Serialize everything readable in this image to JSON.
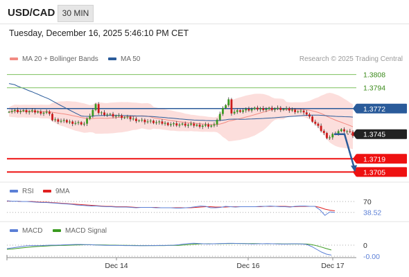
{
  "header": {
    "pair": "USD/CAD",
    "timeframe": "30 MIN",
    "datetime": "Tuesday, December 16, 2025 5:46:10 PM CET"
  },
  "legend": {
    "items": [
      {
        "label": "MA 20 + Bollinger Bands",
        "color": "#f28b82"
      },
      {
        "label": "MA 50",
        "color": "#2a5b9a"
      }
    ],
    "research": "Research © 2025 Trading Central"
  },
  "rsi_legend": {
    "rsi": "RSI",
    "rsi_color": "#5b7fd6",
    "ma": "9MA",
    "ma_color": "#e02020"
  },
  "macd_legend": {
    "macd": "MACD",
    "macd_color": "#5b7fd6",
    "signal": "MACD Signal",
    "signal_color": "#3a9a20"
  },
  "chart_data": [
    {
      "type": "candlestick",
      "ylim": [
        1.3698,
        1.3815
      ],
      "x_labels": [
        "Dec 14",
        "Dec 16",
        "Dec 17"
      ],
      "levels": [
        {
          "label": "1.3808",
          "value": 1.3808,
          "style": "green"
        },
        {
          "label": "1.3794",
          "value": 1.3794,
          "style": "green"
        },
        {
          "label": "1.3772",
          "value": 1.3772,
          "style": "pivot"
        },
        {
          "label": "1.3745",
          "value": 1.3745,
          "style": "current"
        },
        {
          "label": "1.3719",
          "value": 1.3719,
          "style": "red"
        },
        {
          "label": "1.3705",
          "value": 1.3705,
          "style": "red"
        }
      ],
      "projection": {
        "from": 1.3745,
        "to": 1.3705
      }
    },
    {
      "type": "line",
      "name": "RSI",
      "levels": [
        {
          "label": "70",
          "value": 70
        },
        {
          "label": "38.52",
          "value": 38.52
        }
      ],
      "ylim": [
        20,
        80
      ],
      "rsi": [
        72,
        71,
        71,
        70,
        70,
        69,
        68,
        67,
        67,
        66,
        65,
        64,
        63,
        62,
        60,
        59,
        58,
        57,
        57,
        56,
        55,
        55,
        54,
        54,
        54,
        53,
        52,
        53,
        53,
        53,
        52,
        52,
        52,
        52,
        51,
        51,
        52,
        53,
        55,
        57,
        56,
        52,
        52,
        53,
        56,
        55,
        54,
        55,
        55,
        55,
        55,
        56,
        56,
        57,
        56,
        55,
        55,
        54,
        56,
        57,
        57,
        56,
        56,
        46,
        30,
        40,
        38.52
      ],
      "ma": [
        71,
        71,
        71,
        70,
        70,
        70,
        69,
        68,
        68,
        67,
        66,
        65,
        64,
        63,
        62,
        61,
        60,
        59,
        58,
        57,
        56,
        56,
        55,
        55,
        55,
        54,
        53,
        53,
        53,
        53,
        53,
        52,
        52,
        52,
        52,
        52,
        52,
        52,
        53,
        54,
        55,
        55,
        54,
        54,
        54,
        55,
        55,
        55,
        55,
        55,
        55,
        55,
        56,
        56,
        56,
        56,
        56,
        55,
        55,
        56,
        56,
        56,
        56,
        53,
        48,
        45,
        43
      ]
    },
    {
      "type": "line",
      "name": "MACD",
      "levels": [
        {
          "label": "0",
          "value": 0
        },
        {
          "label": "-0.00",
          "value": -0.0008
        }
      ],
      "ylim": [
        -0.0009,
        0.0006
      ],
      "macd": [
        -0.00025,
        -0.0002,
        -0.00015,
        -0.0001,
        -5e-05,
        -3e-05,
        -4e-05,
        -3e-05,
        -1e-05,
        0.0,
        0.0,
        1e-05,
        3e-05,
        4e-05,
        5e-05,
        5e-05,
        4e-05,
        3e-05,
        1e-05,
        0.0,
        -1e-05,
        -2e-05,
        -2e-05,
        -2e-05,
        -3e-05,
        -3e-05,
        -4e-05,
        -4e-05,
        -4e-05,
        -3e-05,
        -3e-05,
        -2e-05,
        -2e-05,
        -1e-05,
        0.0,
        3e-05,
        8e-05,
        0.00012,
        0.00014,
        0.00012,
        0.0001,
        9e-05,
        0.0001,
        0.00011,
        0.00012,
        0.00013,
        0.00013,
        0.00012,
        0.00011,
        0.0001,
        9e-05,
        0.0001,
        0.0001,
        0.00011,
        0.0001,
        9e-05,
        8e-05,
        8e-05,
        0.0001,
        0.0001,
        8e-05,
        5e-05,
        -0.0001,
        -0.0003,
        -0.0005,
        -0.00065,
        -0.00072
      ],
      "signal": [
        -0.0003,
        -0.00028,
        -0.00024,
        -0.0002,
        -0.00016,
        -0.00013,
        -0.0001,
        -8e-05,
        -6e-05,
        -4e-05,
        -3e-05,
        -2e-05,
        -1e-05,
        0.0,
        1e-05,
        2e-05,
        3e-05,
        3e-05,
        2e-05,
        2e-05,
        1e-05,
        0.0,
        0.0,
        -1e-05,
        -1e-05,
        -2e-05,
        -2e-05,
        -3e-05,
        -3e-05,
        -3e-05,
        -3e-05,
        -3e-05,
        -3e-05,
        -2e-05,
        -2e-05,
        -1e-05,
        1e-05,
        4e-05,
        7e-05,
        9e-05,
        0.0001,
        0.0001,
        0.0001,
        0.0001,
        0.00011,
        0.00011,
        0.00012,
        0.00012,
        0.00012,
        0.00011,
        0.00011,
        0.00011,
        0.0001,
        0.0001,
        0.0001,
        0.0001,
        9e-05,
        9e-05,
        9e-05,
        9e-05,
        9e-05,
        8e-05,
        4e-05,
        -4e-05,
        -0.00014,
        -0.00025,
        -0.00035
      ]
    }
  ]
}
